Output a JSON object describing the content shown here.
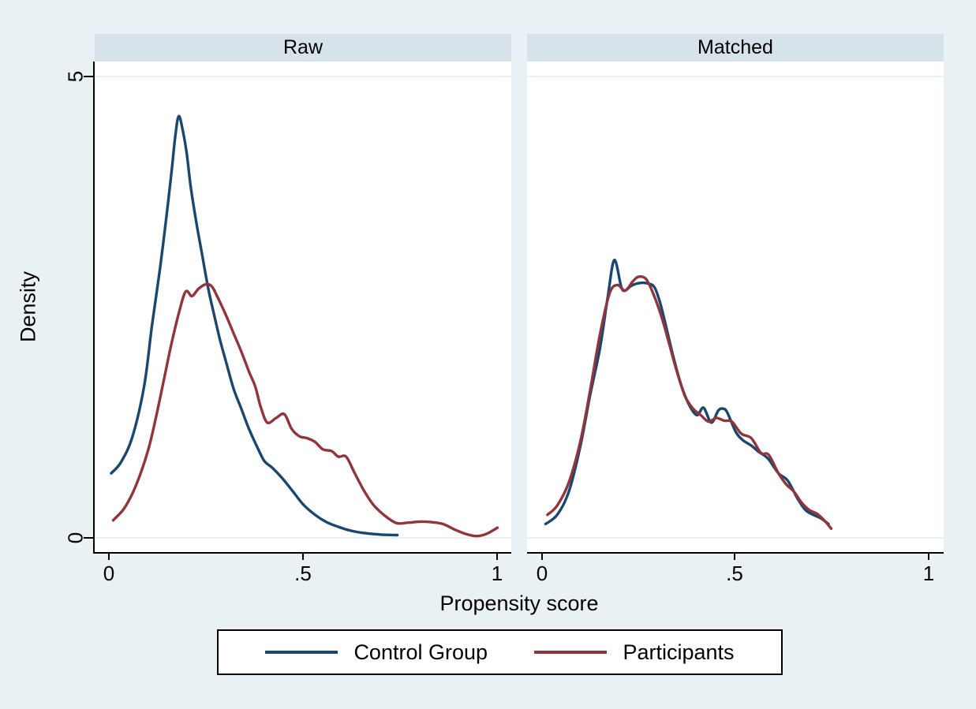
{
  "figure": {
    "x_axis_title": "Propensity score",
    "y_axis_title": "Density"
  },
  "panels": [
    {
      "title": "Raw"
    },
    {
      "title": "Matched"
    }
  ],
  "y_tick_labels": [
    "5",
    "0"
  ],
  "x_tick_labels": [
    "0",
    ".5",
    "1"
  ],
  "legend": {
    "items": [
      {
        "label": "Control Group",
        "color": "#1A476F"
      },
      {
        "label": "Participants",
        "color": "#90353B"
      }
    ]
  },
  "colors": {
    "background": "#EAF1F5",
    "panel_strip": "#D7E3EB",
    "plot_background": "#FFFFFF",
    "gridline": "#E9F1F3",
    "axis": "#000000",
    "control_group": "#1A476F",
    "participants": "#90353B"
  },
  "chart_data": [
    {
      "type": "line",
      "title": "Raw",
      "xlabel": "Propensity score",
      "ylabel": "Density",
      "xlim": [
        0,
        1
      ],
      "ylim": [
        0,
        5
      ],
      "xticks": [
        0,
        0.5,
        1
      ],
      "yticks": [
        0,
        5
      ],
      "grid": true,
      "legend_position": "bottom",
      "series": [
        {
          "name": "Control Group",
          "color": "#1A476F",
          "x": [
            0.005,
            0.03,
            0.06,
            0.09,
            0.11,
            0.13,
            0.145,
            0.16,
            0.17,
            0.179,
            0.19,
            0.2,
            0.21,
            0.225,
            0.24,
            0.255,
            0.27,
            0.285,
            0.3,
            0.32,
            0.34,
            0.36,
            0.385,
            0.4,
            0.42,
            0.445,
            0.47,
            0.5,
            0.53,
            0.56,
            0.59,
            0.62,
            0.66,
            0.7,
            0.742
          ],
          "y": [
            0.7,
            0.82,
            1.1,
            1.65,
            2.3,
            2.9,
            3.4,
            3.95,
            4.35,
            4.57,
            4.4,
            4.15,
            3.8,
            3.4,
            3.05,
            2.7,
            2.42,
            2.15,
            1.92,
            1.62,
            1.4,
            1.18,
            0.95,
            0.83,
            0.76,
            0.65,
            0.52,
            0.36,
            0.25,
            0.17,
            0.12,
            0.08,
            0.05,
            0.035,
            0.03
          ]
        },
        {
          "name": "Participants",
          "color": "#90353B",
          "x": [
            0.01,
            0.04,
            0.07,
            0.1,
            0.12,
            0.14,
            0.16,
            0.18,
            0.197,
            0.213,
            0.23,
            0.25,
            0.265,
            0.28,
            0.3,
            0.32,
            0.34,
            0.36,
            0.376,
            0.39,
            0.407,
            0.43,
            0.451,
            0.47,
            0.49,
            0.51,
            0.53,
            0.55,
            0.573,
            0.59,
            0.61,
            0.63,
            0.655,
            0.68,
            0.71,
            0.74,
            0.77,
            0.8,
            0.83,
            0.86,
            0.89,
            0.92,
            0.945,
            0.97,
            1.0
          ],
          "y": [
            0.19,
            0.33,
            0.58,
            0.95,
            1.3,
            1.7,
            2.1,
            2.45,
            2.67,
            2.62,
            2.7,
            2.75,
            2.72,
            2.6,
            2.42,
            2.22,
            2.02,
            1.8,
            1.64,
            1.42,
            1.25,
            1.3,
            1.34,
            1.18,
            1.1,
            1.08,
            1.04,
            0.96,
            0.94,
            0.88,
            0.88,
            0.72,
            0.52,
            0.36,
            0.24,
            0.16,
            0.165,
            0.175,
            0.17,
            0.15,
            0.09,
            0.04,
            0.02,
            0.04,
            0.11
          ]
        }
      ]
    },
    {
      "type": "line",
      "title": "Matched",
      "xlabel": "Propensity score",
      "ylabel": "Density",
      "xlim": [
        0,
        1
      ],
      "ylim": [
        0,
        5
      ],
      "xticks": [
        0,
        0.5,
        1
      ],
      "yticks": [
        0,
        5
      ],
      "grid": true,
      "legend_position": "bottom",
      "series": [
        {
          "name": "Control Group",
          "color": "#1A476F",
          "x": [
            0.01,
            0.04,
            0.07,
            0.1,
            0.125,
            0.15,
            0.17,
            0.187,
            0.205,
            0.215,
            0.23,
            0.25,
            0.27,
            0.29,
            0.305,
            0.32,
            0.34,
            0.36,
            0.38,
            0.4,
            0.417,
            0.437,
            0.455,
            0.467,
            0.478,
            0.5,
            0.518,
            0.54,
            0.56,
            0.583,
            0.61,
            0.634,
            0.66,
            0.68,
            0.7,
            0.72,
            0.739
          ],
          "y": [
            0.15,
            0.25,
            0.5,
            1.0,
            1.55,
            2.05,
            2.6,
            3.01,
            2.72,
            2.68,
            2.73,
            2.76,
            2.76,
            2.72,
            2.55,
            2.3,
            1.95,
            1.65,
            1.44,
            1.33,
            1.41,
            1.25,
            1.38,
            1.4,
            1.36,
            1.15,
            1.06,
            1.0,
            0.93,
            0.86,
            0.7,
            0.62,
            0.42,
            0.3,
            0.25,
            0.21,
            0.15
          ]
        },
        {
          "name": "Participants",
          "color": "#90353B",
          "x": [
            0.015,
            0.04,
            0.07,
            0.1,
            0.125,
            0.15,
            0.175,
            0.195,
            0.215,
            0.235,
            0.25,
            0.27,
            0.29,
            0.31,
            0.33,
            0.35,
            0.37,
            0.39,
            0.41,
            0.43,
            0.45,
            0.47,
            0.49,
            0.514,
            0.54,
            0.565,
            0.585,
            0.61,
            0.63,
            0.65,
            0.67,
            0.69,
            0.71,
            0.73,
            0.746
          ],
          "y": [
            0.25,
            0.35,
            0.6,
            1.05,
            1.6,
            2.2,
            2.65,
            2.74,
            2.68,
            2.78,
            2.83,
            2.8,
            2.62,
            2.38,
            2.08,
            1.78,
            1.53,
            1.4,
            1.33,
            1.26,
            1.3,
            1.27,
            1.26,
            1.13,
            1.08,
            0.92,
            0.9,
            0.7,
            0.58,
            0.5,
            0.38,
            0.3,
            0.26,
            0.18,
            0.1
          ]
        }
      ]
    }
  ]
}
